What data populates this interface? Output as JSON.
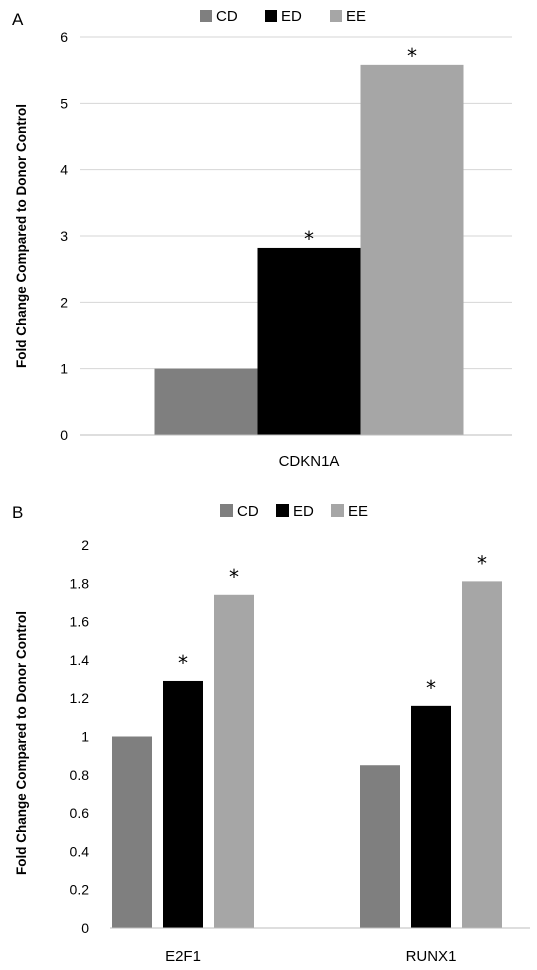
{
  "chart_data": [
    {
      "panel": "A",
      "type": "bar",
      "categories": [
        "CDKN1A"
      ],
      "series": [
        {
          "name": "CD",
          "values": [
            1.0
          ]
        },
        {
          "name": "ED",
          "values": [
            2.82
          ]
        },
        {
          "name": "EE",
          "values": [
            5.58
          ]
        }
      ],
      "significance": [
        {
          "series": "ED",
          "category": "CDKN1A",
          "label": "*"
        },
        {
          "series": "EE",
          "category": "CDKN1A",
          "label": "*"
        }
      ],
      "xlabel": "",
      "ylabel": "Fold Change Compared to Donor Control",
      "ylim": [
        0,
        6
      ],
      "yticks": [
        "0",
        "1",
        "2",
        "3",
        "4",
        "5",
        "6"
      ],
      "grid": true,
      "legend": "top"
    },
    {
      "panel": "B",
      "type": "bar",
      "categories": [
        "E2F1",
        "RUNX1"
      ],
      "series": [
        {
          "name": "CD",
          "values": [
            1.0,
            0.85
          ]
        },
        {
          "name": "ED",
          "values": [
            1.29,
            1.16
          ]
        },
        {
          "name": "EE",
          "values": [
            1.74,
            1.81
          ]
        }
      ],
      "significance": [
        {
          "series": "ED",
          "category": "E2F1",
          "label": "*"
        },
        {
          "series": "EE",
          "category": "E2F1",
          "label": "*"
        },
        {
          "series": "ED",
          "category": "RUNX1",
          "label": "*"
        },
        {
          "series": "EE",
          "category": "RUNX1",
          "label": "*"
        }
      ],
      "xlabel": "",
      "ylabel": "Fold Change Compared to Donor Control",
      "ylim": [
        0,
        2
      ],
      "yticks": [
        "0",
        "0.2",
        "0.4",
        "0.6",
        "0.8",
        "1",
        "1.2",
        "1.4",
        "1.6",
        "1.8",
        "2"
      ],
      "grid": false,
      "legend": "top"
    }
  ],
  "colors": {
    "CD": "#7f7f7f",
    "ED": "#000000",
    "EE": "#a6a6a6"
  }
}
